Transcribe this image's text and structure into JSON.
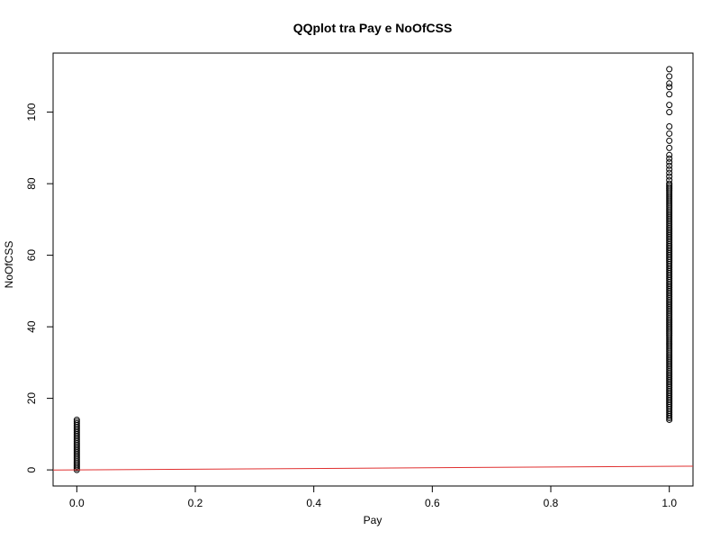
{
  "chart_data": {
    "type": "scatter",
    "title": "QQplot tra Pay e NoOfCSS",
    "xlabel": "Pay",
    "ylabel": "NoOfCSS",
    "xlim": [
      -0.04,
      1.04
    ],
    "ylim": [
      -4.5,
      116.5
    ],
    "x_ticks": [
      0,
      0.2,
      0.4,
      0.6,
      0.8,
      1
    ],
    "x_tick_labels": [
      "0.0",
      "0.2",
      "0.4",
      "0.6",
      "0.8",
      "1.0"
    ],
    "y_ticks": [
      0,
      20,
      40,
      60,
      80,
      100
    ],
    "y_tick_labels": [
      "0",
      "20",
      "40",
      "60",
      "80",
      "100"
    ],
    "grid": false,
    "series": [
      {
        "name": "Pay = 0",
        "x": 0,
        "y": [
          0,
          0.5,
          1,
          1.5,
          2,
          2.5,
          3,
          3.5,
          4,
          4.5,
          5,
          5.5,
          6,
          6.5,
          7,
          7.5,
          8,
          8.5,
          9,
          9.5,
          10,
          10.5,
          11,
          11.5,
          12,
          12.5,
          13,
          13.5,
          14
        ]
      },
      {
        "name": "Pay = 1",
        "x": 1,
        "y": [
          14,
          14.5,
          15,
          15.5,
          16,
          16.5,
          17,
          17.5,
          18,
          18.5,
          19,
          19.5,
          20,
          20.5,
          21,
          21.5,
          22,
          22.5,
          23,
          23.5,
          24,
          24.5,
          25,
          25.5,
          26,
          26.5,
          27,
          27.5,
          28,
          28.5,
          29,
          29.5,
          30,
          30.5,
          31,
          31.5,
          32,
          32.5,
          33,
          33.5,
          34,
          34.5,
          35,
          35.5,
          36,
          36.5,
          37,
          37.5,
          38,
          38.5,
          39,
          39.5,
          40,
          40.5,
          41,
          41.5,
          42,
          42.5,
          43,
          43.5,
          44,
          44.5,
          45,
          45.5,
          46,
          46.5,
          47,
          47.5,
          48,
          48.5,
          49,
          49.5,
          50,
          50.5,
          51,
          51.5,
          52,
          52.5,
          53,
          53.5,
          54,
          54.5,
          55,
          55.5,
          56,
          56.5,
          57,
          57.5,
          58,
          58.5,
          59,
          59.5,
          60,
          60.5,
          61,
          61.5,
          62,
          62.5,
          63,
          63.5,
          64,
          64.5,
          65,
          65.5,
          66,
          66.5,
          67,
          67.5,
          68,
          68.5,
          69,
          69.5,
          70,
          70.5,
          71,
          71.5,
          72,
          72.5,
          73,
          73.5,
          74,
          74.5,
          75,
          75.5,
          76,
          76.5,
          77,
          77.5,
          78,
          78.5,
          79,
          79.5,
          80,
          81,
          82,
          83,
          84,
          85,
          86,
          87,
          88,
          90,
          92,
          94,
          96,
          100,
          102,
          105,
          107,
          108,
          110,
          112
        ]
      }
    ],
    "reference_line": {
      "slope": 1,
      "intercept": 0,
      "color": "#e03030"
    },
    "point_color": "#000000"
  }
}
